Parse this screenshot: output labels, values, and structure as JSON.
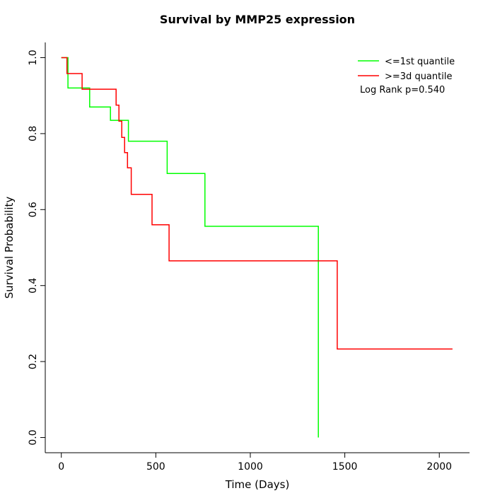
{
  "chart_data": {
    "type": "line",
    "subtype": "kaplan-meier-step",
    "title": "Survival by MMP25 expression",
    "xlabel": "Time (Days)",
    "ylabel": "Survival Probability",
    "xlim": [
      -85,
      2160
    ],
    "ylim": [
      -0.04,
      1.04
    ],
    "xticks": [
      0,
      500,
      1000,
      1500,
      2000
    ],
    "yticks": [
      0.0,
      0.2,
      0.4,
      0.6,
      0.8,
      1.0
    ],
    "ytick_labels": [
      "0.0",
      "0.2",
      "0.4",
      "0.6",
      "0.8",
      "1.0"
    ],
    "grid": "off",
    "legend_position": "top-right",
    "annotation": "Log Rank p=0.540",
    "series": [
      {
        "name": "<=1st quantile",
        "color": "#00ff00",
        "points": [
          [
            0,
            1.0
          ],
          [
            35,
            0.92
          ],
          [
            150,
            0.87
          ],
          [
            260,
            0.835
          ],
          [
            355,
            0.78
          ],
          [
            560,
            0.695
          ],
          [
            760,
            0.556
          ],
          [
            1360,
            0.556
          ],
          [
            1360,
            0.0
          ]
        ]
      },
      {
        "name": ">=3d quantile",
        "color": "#ff0000",
        "points": [
          [
            0,
            1.0
          ],
          [
            30,
            0.958
          ],
          [
            110,
            0.917
          ],
          [
            290,
            0.875
          ],
          [
            305,
            0.833
          ],
          [
            320,
            0.79
          ],
          [
            335,
            0.75
          ],
          [
            350,
            0.71
          ],
          [
            370,
            0.64
          ],
          [
            480,
            0.56
          ],
          [
            570,
            0.465
          ],
          [
            1460,
            0.233
          ],
          [
            2070,
            0.233
          ]
        ]
      }
    ]
  }
}
